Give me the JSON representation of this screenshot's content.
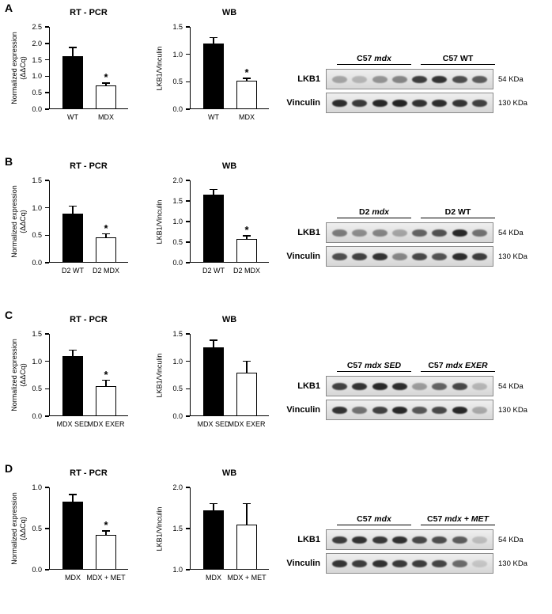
{
  "panels": [
    {
      "label": "A",
      "rtpcr_chart": 0,
      "wb_chart": 1,
      "blot": {
        "groups": [
          {
            "parts": [
              {
                "t": "C57 ",
                "i": false
              },
              {
                "t": "mdx",
                "i": true
              }
            ]
          },
          {
            "parts": [
              {
                "t": "C57 WT",
                "i": false
              }
            ]
          }
        ],
        "rows": [
          {
            "label": "LKB1",
            "kda": "54 KDa",
            "bands": [
              0.3,
              0.22,
              0.38,
              0.45,
              0.8,
              0.85,
              0.72,
              0.65
            ]
          },
          {
            "label": "Vinculin",
            "kda": "130 KDa",
            "bands": [
              0.88,
              0.82,
              0.9,
              0.92,
              0.85,
              0.88,
              0.84,
              0.78
            ]
          }
        ]
      }
    },
    {
      "label": "B",
      "rtpcr_chart": 2,
      "wb_chart": 3,
      "blot": {
        "groups": [
          {
            "parts": [
              {
                "t": "D2 ",
                "i": false
              },
              {
                "t": "mdx",
                "i": true
              }
            ]
          },
          {
            "parts": [
              {
                "t": "D2 WT",
                "i": false
              }
            ]
          }
        ],
        "rows": [
          {
            "label": "LKB1",
            "kda": "54 KDa",
            "bands": [
              0.5,
              0.42,
              0.46,
              0.3,
              0.62,
              0.7,
              0.9,
              0.55
            ]
          },
          {
            "label": "Vinculin",
            "kda": "130 KDa",
            "bands": [
              0.72,
              0.78,
              0.85,
              0.45,
              0.75,
              0.7,
              0.88,
              0.8
            ]
          }
        ]
      }
    },
    {
      "label": "C",
      "rtpcr_chart": 4,
      "wb_chart": 5,
      "blot": {
        "groups": [
          {
            "parts": [
              {
                "t": "C57 ",
                "i": false
              },
              {
                "t": "mdx SED",
                "i": true
              }
            ]
          },
          {
            "parts": [
              {
                "t": "C57 ",
                "i": false
              },
              {
                "t": "mdx EXER",
                "i": true
              }
            ]
          }
        ],
        "rows": [
          {
            "label": "LKB1",
            "kda": "54 KDa",
            "bands": [
              0.78,
              0.85,
              0.9,
              0.88,
              0.35,
              0.62,
              0.75,
              0.22
            ]
          },
          {
            "label": "Vinculin",
            "kda": "130 KDa",
            "bands": [
              0.85,
              0.55,
              0.78,
              0.9,
              0.68,
              0.75,
              0.9,
              0.28
            ]
          }
        ]
      }
    },
    {
      "label": "D",
      "rtpcr_chart": 6,
      "wb_chart": 7,
      "blot": {
        "groups": [
          {
            "parts": [
              {
                "t": "C57 ",
                "i": false
              },
              {
                "t": "mdx",
                "i": true
              }
            ]
          },
          {
            "parts": [
              {
                "t": "C57 ",
                "i": false
              },
              {
                "t": "mdx + MET",
                "i": true
              }
            ]
          }
        ],
        "rows": [
          {
            "label": "LKB1",
            "kda": "54 KDa",
            "bands": [
              0.8,
              0.85,
              0.82,
              0.86,
              0.75,
              0.72,
              0.65,
              0.18
            ]
          },
          {
            "label": "Vinculin",
            "kda": "130 KDa",
            "bands": [
              0.84,
              0.8,
              0.86,
              0.82,
              0.8,
              0.76,
              0.58,
              0.14
            ]
          }
        ]
      }
    }
  ],
  "chart_data": [
    {
      "panel": "A",
      "type": "bar",
      "title": "RT - PCR",
      "ylabel": [
        "Normalized expression",
        "(ΔΔCq)"
      ],
      "ylim": [
        0,
        2.5
      ],
      "yticks": [
        "0.0",
        "0.5",
        "1.0",
        "1.5",
        "2.0",
        "2.5"
      ],
      "categories": [
        "WT",
        "MDX"
      ],
      "values": [
        1.6,
        0.73
      ],
      "errors": [
        0.27,
        0.06
      ],
      "significance": [
        "",
        "*"
      ],
      "bar_colors": [
        "#000000",
        "#ffffff"
      ]
    },
    {
      "panel": "A",
      "type": "bar",
      "title": "WB",
      "ylabel": [
        "LKB1/Vinculin"
      ],
      "ylim": [
        0,
        1.5
      ],
      "yticks": [
        "0.0",
        "0.5",
        "1.0",
        "1.5"
      ],
      "categories": [
        "WT",
        "MDX"
      ],
      "values": [
        1.2,
        0.52
      ],
      "errors": [
        0.1,
        0.04
      ],
      "significance": [
        "",
        "*"
      ],
      "bar_colors": [
        "#000000",
        "#ffffff"
      ]
    },
    {
      "panel": "B",
      "type": "bar",
      "title": "RT - PCR",
      "ylabel": [
        "Normalized expression",
        "(ΔΔCq)"
      ],
      "ylim": [
        0,
        1.5
      ],
      "yticks": [
        "0.0",
        "0.5",
        "1.0",
        "1.5"
      ],
      "categories": [
        "D2 WT",
        "D2 MDX"
      ],
      "values": [
        0.9,
        0.46
      ],
      "errors": [
        0.13,
        0.06
      ],
      "significance": [
        "",
        "*"
      ],
      "bar_colors": [
        "#000000",
        "#ffffff"
      ]
    },
    {
      "panel": "B",
      "type": "bar",
      "title": "WB",
      "ylabel": [
        "LKB1/Vinculin"
      ],
      "ylim": [
        0,
        2.0
      ],
      "yticks": [
        "0.0",
        "0.5",
        "1.0",
        "1.5",
        "2.0"
      ],
      "categories": [
        "D2 WT",
        "D2 MDX"
      ],
      "values": [
        1.65,
        0.57
      ],
      "errors": [
        0.12,
        0.08
      ],
      "significance": [
        "",
        "*"
      ],
      "bar_colors": [
        "#000000",
        "#ffffff"
      ]
    },
    {
      "panel": "C",
      "type": "bar",
      "title": "RT - PCR",
      "ylabel": [
        "Normalized expression",
        "(ΔΔCq)"
      ],
      "ylim": [
        0,
        1.5
      ],
      "yticks": [
        "0.0",
        "0.5",
        "1.0",
        "1.5"
      ],
      "categories": [
        "MDX SED",
        "MDX EXER"
      ],
      "values": [
        1.1,
        0.55
      ],
      "errors": [
        0.1,
        0.1
      ],
      "significance": [
        "",
        "*"
      ],
      "bar_colors": [
        "#000000",
        "#ffffff"
      ]
    },
    {
      "panel": "C",
      "type": "bar",
      "title": "WB",
      "ylabel": [
        "LKB1/Vinculin"
      ],
      "ylim": [
        0,
        1.5
      ],
      "yticks": [
        "0.0",
        "0.5",
        "1.0",
        "1.5"
      ],
      "categories": [
        "MDX SED",
        "MDX EXER"
      ],
      "values": [
        1.25,
        0.8
      ],
      "errors": [
        0.13,
        0.2
      ],
      "significance": [
        "",
        ""
      ],
      "bar_colors": [
        "#000000",
        "#ffffff"
      ]
    },
    {
      "panel": "D",
      "type": "bar",
      "title": "RT - PCR",
      "ylabel": [
        "Normalized expression",
        "(ΔΔCq)"
      ],
      "ylim": [
        0,
        1.0
      ],
      "yticks": [
        "0.0",
        "0.5",
        "1.0"
      ],
      "categories": [
        "MDX",
        "MDX + MET"
      ],
      "values": [
        0.83,
        0.42
      ],
      "errors": [
        0.08,
        0.05
      ],
      "significance": [
        "",
        "*"
      ],
      "bar_colors": [
        "#000000",
        "#ffffff"
      ]
    },
    {
      "panel": "D",
      "type": "bar",
      "title": "WB",
      "ylabel": [
        "LKB1/Vinculin"
      ],
      "ylim": [
        1.0,
        2.0
      ],
      "yticks": [
        "1.0",
        "1.5",
        "2.0"
      ],
      "categories": [
        "MDX",
        "MDX + MET"
      ],
      "values": [
        1.72,
        1.55
      ],
      "errors": [
        0.08,
        0.25
      ],
      "significance": [
        "",
        ""
      ],
      "bar_colors": [
        "#000000",
        "#ffffff"
      ]
    }
  ]
}
